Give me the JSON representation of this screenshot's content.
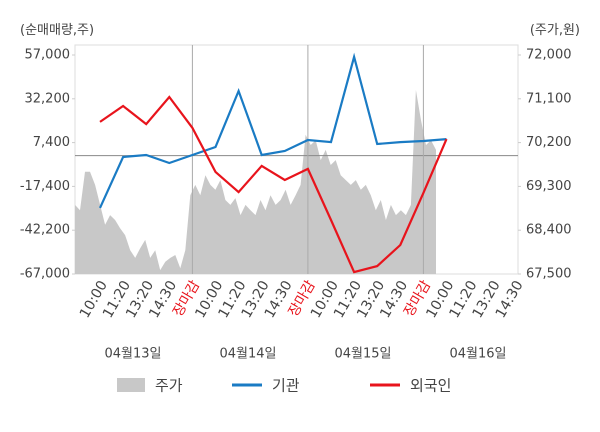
{
  "chart_data": {
    "type": "line",
    "y_axis_label": "(순매매량,주)",
    "y2_axis_label": "(주가,원)",
    "categories": [
      "10:00",
      "11:20",
      "13:20",
      "14:30",
      "장마감",
      "10:00",
      "11:20",
      "13:20",
      "14:30",
      "장마감",
      "10:00",
      "11:20",
      "13:20",
      "14:30",
      "장마감",
      "10:00",
      "11:20",
      "13:20",
      "14:30"
    ],
    "day_labels": [
      "04월13일",
      "04월14일",
      "04월15일",
      "04월16일"
    ],
    "session_close": [
      4,
      9,
      14
    ],
    "close_label_color": "#e8141c",
    "ylim": [
      -67000,
      57000
    ],
    "yticks": [
      {
        "value": 57000,
        "label": "57,000"
      },
      {
        "value": 32200,
        "label": "32,200"
      },
      {
        "value": 7400,
        "label": "7,400"
      },
      {
        "value": -17400,
        "label": "-17,400"
      },
      {
        "value": -42200,
        "label": "-42,200"
      },
      {
        "value": -67000,
        "label": "-67,000"
      }
    ],
    "y2lim": [
      67500,
      72000
    ],
    "y2ticks": [
      {
        "value": 72000,
        "label": "72,000"
      },
      {
        "value": 71100,
        "label": "71,100"
      },
      {
        "value": 70200,
        "label": "70,200"
      },
      {
        "value": 69300,
        "label": "69,300"
      },
      {
        "value": 68400,
        "label": "68,400"
      },
      {
        "value": 67500,
        "label": "67,500"
      }
    ],
    "price": {
      "name": "주가",
      "color": "#c8c8c8",
      "axis": "y2",
      "values": [
        68920,
        68810,
        69600,
        69600,
        69330,
        68920,
        68510,
        68710,
        68610,
        68440,
        68300,
        67990,
        67830,
        68030,
        68200,
        67830,
        67990,
        67580,
        67750,
        67830,
        67890,
        67620,
        67990,
        69120,
        69330,
        69120,
        69530,
        69330,
        69230,
        69430,
        69020,
        68920,
        69060,
        68710,
        68920,
        68810,
        68710,
        69020,
        68810,
        69120,
        68920,
        69020,
        69230,
        68920,
        69120,
        69330,
        70360,
        70150,
        70250,
        69840,
        70050,
        69740,
        69840,
        69530,
        69430,
        69330,
        69430,
        69230,
        69330,
        69120,
        68810,
        69020,
        68610,
        68920,
        68710,
        68810,
        68710,
        68920,
        71280,
        70660,
        70150,
        70250,
        70050
      ]
    },
    "series": [
      {
        "name": "기관",
        "color": "#1a7bc4",
        "values": [
          -29600,
          -750,
          380,
          -4150,
          380,
          4900,
          36600,
          380,
          2650,
          8900,
          7700,
          55900,
          6600,
          7700,
          8300,
          9400,
          null,
          null,
          null
        ]
      },
      {
        "name": "외국인",
        "color": "#e8141c",
        "values": [
          19100,
          28100,
          17900,
          33200,
          15700,
          -9200,
          -20600,
          -5800,
          -13800,
          -7500,
          -36400,
          -65900,
          -62500,
          -50600,
          -21100,
          9400,
          null,
          null,
          null
        ]
      }
    ]
  }
}
